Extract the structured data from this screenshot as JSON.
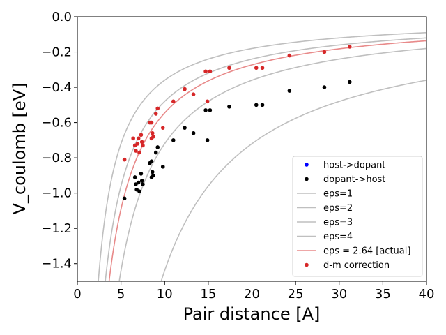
{
  "chart_data": {
    "type": "scatter",
    "xlabel": "Pair distance [A]",
    "ylabel": "V_coulomb [eV]",
    "xlim": [
      0,
      40
    ],
    "ylim": [
      -1.5,
      0.0
    ],
    "xticks": [
      0,
      5,
      10,
      15,
      20,
      25,
      30,
      35,
      40
    ],
    "yticks": [
      0.0,
      -0.2,
      -0.4,
      -0.6,
      -0.8,
      -1.0,
      -1.2,
      -1.4
    ],
    "xtick_labels": [
      "0",
      "5",
      "10",
      "15",
      "20",
      "25",
      "30",
      "35",
      "40"
    ],
    "ytick_labels": [
      "0.0",
      "−0.2",
      "−0.4",
      "−0.6",
      "−0.8",
      "−1.0",
      "−1.2",
      "−1.4"
    ],
    "grid": false,
    "legend_position": "lower-right",
    "curves": [
      {
        "label": "eps=1",
        "eps": 1,
        "color": "#bfbfbf"
      },
      {
        "label": "eps=2",
        "eps": 2,
        "color": "#bfbfbf"
      },
      {
        "label": "eps=3",
        "eps": 3,
        "color": "#bfbfbf"
      },
      {
        "label": "eps=4",
        "eps": 4,
        "color": "#bfbfbf"
      },
      {
        "label": "eps = 2.64 [actual]",
        "eps": 2.64,
        "color": "#e88a8a"
      }
    ],
    "series": [
      {
        "name": "host->dopant",
        "color": "#0000ff",
        "points": []
      },
      {
        "name": "dopant->host",
        "color": "#000000",
        "points": [
          [
            5.4,
            -1.03
          ],
          [
            6.6,
            -0.91
          ],
          [
            6.7,
            -0.95
          ],
          [
            6.8,
            -0.98
          ],
          [
            7.0,
            -0.94
          ],
          [
            7.1,
            -0.99
          ],
          [
            7.3,
            -0.89
          ],
          [
            7.4,
            -0.93
          ],
          [
            7.5,
            -0.95
          ],
          [
            8.3,
            -0.83
          ],
          [
            8.5,
            -0.82
          ],
          [
            8.5,
            -0.91
          ],
          [
            8.6,
            -0.88
          ],
          [
            8.7,
            -0.9
          ],
          [
            9.0,
            -0.77
          ],
          [
            9.2,
            -0.74
          ],
          [
            9.8,
            -0.85
          ],
          [
            11.0,
            -0.7
          ],
          [
            12.3,
            -0.63
          ],
          [
            13.3,
            -0.66
          ],
          [
            14.7,
            -0.53
          ],
          [
            14.9,
            -0.7
          ],
          [
            15.2,
            -0.53
          ],
          [
            17.4,
            -0.51
          ],
          [
            20.5,
            -0.5
          ],
          [
            21.2,
            -0.5
          ],
          [
            24.3,
            -0.42
          ],
          [
            28.3,
            -0.4
          ],
          [
            31.2,
            -0.37
          ]
        ]
      },
      {
        "name": "d-m correction",
        "color": "#d62728",
        "points": [
          [
            5.4,
            -0.81
          ],
          [
            6.4,
            -0.69
          ],
          [
            6.6,
            -0.73
          ],
          [
            6.7,
            -0.76
          ],
          [
            6.9,
            -0.72
          ],
          [
            7.0,
            -0.69
          ],
          [
            7.1,
            -0.77
          ],
          [
            7.3,
            -0.67
          ],
          [
            7.4,
            -0.71
          ],
          [
            7.5,
            -0.73
          ],
          [
            8.3,
            -0.6
          ],
          [
            8.5,
            -0.6
          ],
          [
            8.5,
            -0.69
          ],
          [
            8.6,
            -0.66
          ],
          [
            8.7,
            -0.68
          ],
          [
            9.0,
            -0.55
          ],
          [
            9.2,
            -0.52
          ],
          [
            9.8,
            -0.63
          ],
          [
            11.0,
            -0.48
          ],
          [
            12.3,
            -0.41
          ],
          [
            13.3,
            -0.44
          ],
          [
            14.7,
            -0.31
          ],
          [
            14.9,
            -0.48
          ],
          [
            15.2,
            -0.31
          ],
          [
            17.4,
            -0.29
          ],
          [
            20.5,
            -0.29
          ],
          [
            21.2,
            -0.29
          ],
          [
            24.3,
            -0.22
          ],
          [
            28.3,
            -0.2
          ],
          [
            31.2,
            -0.17
          ]
        ]
      }
    ],
    "legend": [
      {
        "label": "host->dopant",
        "kind": "marker",
        "color": "#0000ff"
      },
      {
        "label": "dopant->host",
        "kind": "marker",
        "color": "#000000"
      },
      {
        "label": "eps=1",
        "kind": "line",
        "color": "#bfbfbf"
      },
      {
        "label": "eps=2",
        "kind": "line",
        "color": "#bfbfbf"
      },
      {
        "label": "eps=3",
        "kind": "line",
        "color": "#bfbfbf"
      },
      {
        "label": "eps=4",
        "kind": "line",
        "color": "#bfbfbf"
      },
      {
        "label": "eps = 2.64 [actual]",
        "kind": "line",
        "color": "#e88a8a"
      },
      {
        "label": "d-m correction",
        "kind": "marker",
        "color": "#d62728"
      }
    ]
  }
}
